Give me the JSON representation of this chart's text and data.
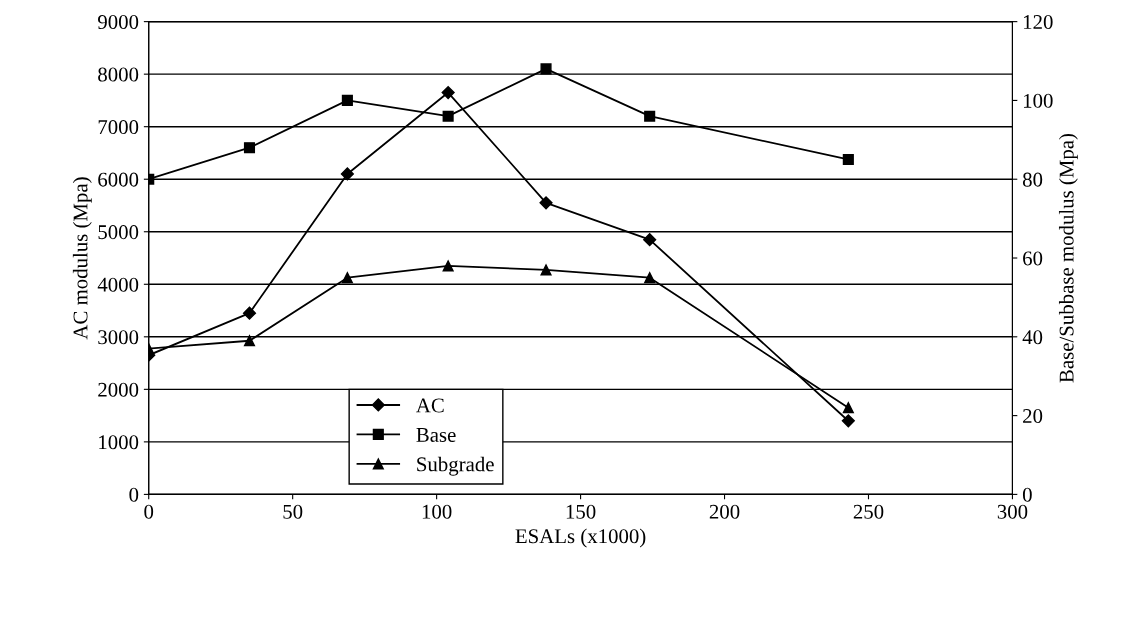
{
  "chart_data": {
    "type": "line",
    "xlabel": "ESALs (x1000)",
    "ylabel": "AC modulus (Mpa)",
    "y2label": "Base/Subbase modulus (Mpa)",
    "series": [
      {
        "name": "AC",
        "color": "#000000",
        "marker": "diamond",
        "x": [
          0,
          35,
          69,
          104,
          138,
          174,
          243
        ],
        "values": [
          2650,
          3450,
          6100,
          7650,
          5550,
          4850,
          1400
        ]
      },
      {
        "name": "Base",
        "color": "#000000",
        "marker": "square",
        "axis": "y2",
        "x": [
          0,
          35,
          69,
          104,
          138,
          174,
          243
        ],
        "values": [
          80,
          88,
          100,
          96,
          108,
          96,
          85
        ]
      },
      {
        "name": "Subgrade",
        "color": "#000000",
        "marker": "triangle",
        "axis": "y2",
        "x": [
          0,
          35,
          69,
          104,
          138,
          174,
          243
        ],
        "values": [
          37,
          39,
          55,
          58,
          57,
          55,
          22
        ]
      }
    ],
    "xlim": [
      0,
      300
    ],
    "xticks": [
      0,
      50,
      100,
      150,
      200,
      250,
      300
    ],
    "ylim": [
      0,
      9000
    ],
    "yticks": [
      0,
      1000,
      2000,
      3000,
      4000,
      5000,
      6000,
      7000,
      8000,
      9000
    ],
    "y2lim": [
      0,
      120
    ],
    "y2ticks": [
      0,
      20,
      40,
      60,
      80,
      100,
      120
    ],
    "grid": "y",
    "legend": "bottom left",
    "line_style": "solid"
  }
}
